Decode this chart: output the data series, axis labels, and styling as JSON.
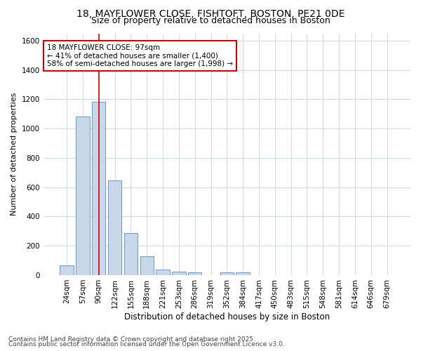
{
  "title_line1": "18, MAYFLOWER CLOSE, FISHTOFT, BOSTON, PE21 0DE",
  "title_line2": "Size of property relative to detached houses in Boston",
  "xlabel": "Distribution of detached houses by size in Boston",
  "ylabel": "Number of detached properties",
  "categories": [
    "24sqm",
    "57sqm",
    "90sqm",
    "122sqm",
    "155sqm",
    "188sqm",
    "221sqm",
    "253sqm",
    "286sqm",
    "319sqm",
    "352sqm",
    "384sqm",
    "417sqm",
    "450sqm",
    "483sqm",
    "515sqm",
    "548sqm",
    "581sqm",
    "614sqm",
    "646sqm",
    "679sqm"
  ],
  "values": [
    65,
    1080,
    1185,
    645,
    285,
    130,
    40,
    25,
    20,
    0,
    20,
    20,
    0,
    0,
    0,
    0,
    0,
    0,
    0,
    0,
    0
  ],
  "bar_color": "#c8d8ea",
  "bar_edge_color": "#6699cc",
  "red_line_x": 2.0,
  "annotation_text": "18 MAYFLOWER CLOSE: 97sqm\n← 41% of detached houses are smaller (1,400)\n58% of semi-detached houses are larger (1,998) →",
  "annotation_box_color": "#ffffff",
  "annotation_border_color": "#cc0000",
  "red_line_color": "#cc0000",
  "footnote_line1": "Contains HM Land Registry data © Crown copyright and database right 2025.",
  "footnote_line2": "Contains public sector information licensed under the Open Government Licence v3.0.",
  "bg_color": "#ffffff",
  "plot_bg_color": "#ffffff",
  "grid_color": "#d0dce8",
  "ylim": [
    0,
    1650
  ],
  "title_fontsize": 10,
  "subtitle_fontsize": 9,
  "tick_fontsize": 7.5,
  "ylabel_fontsize": 8,
  "xlabel_fontsize": 8.5,
  "footnote_fontsize": 6.5,
  "annotation_fontsize": 7.5
}
